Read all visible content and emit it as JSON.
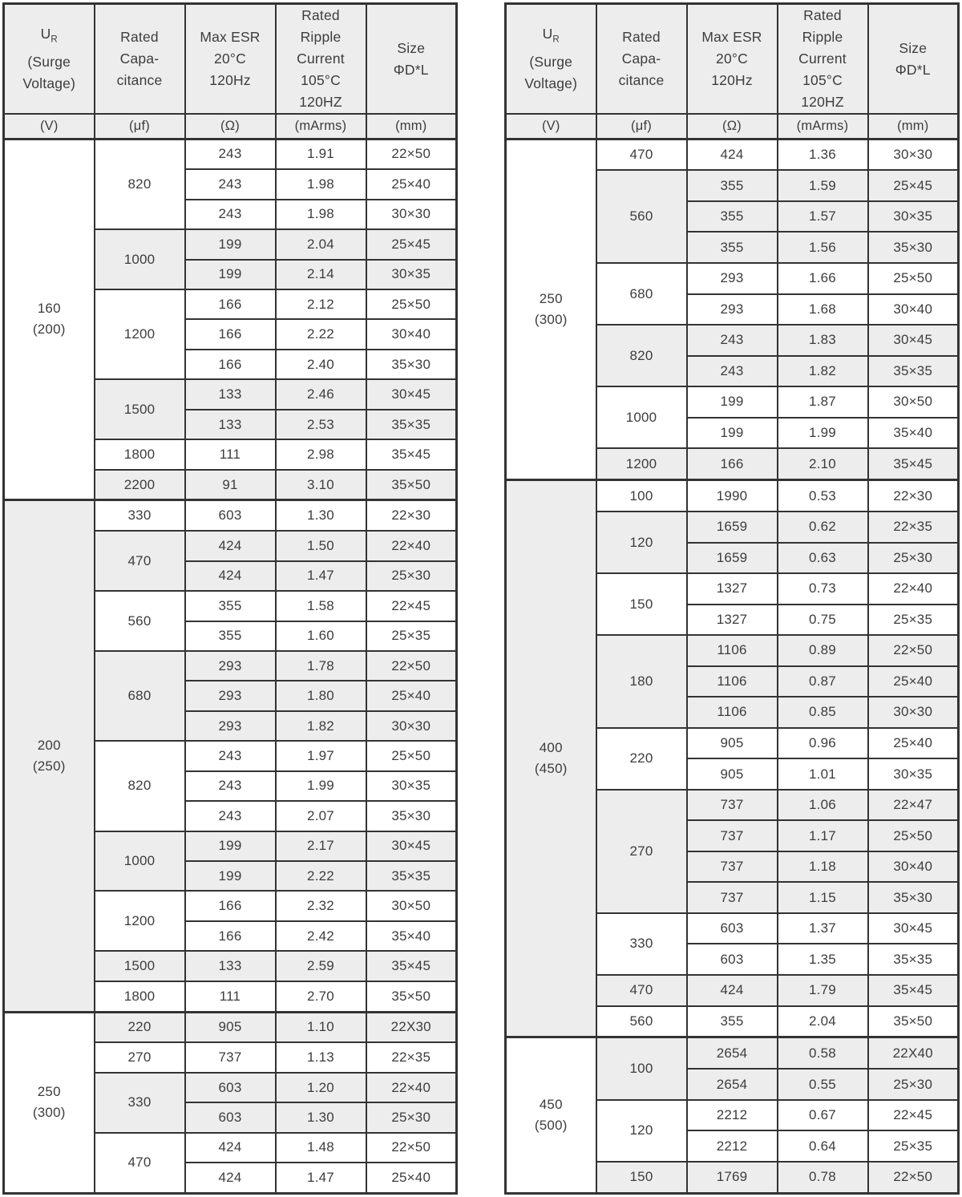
{
  "colors": {
    "border": "#333333",
    "header_bg": "#ededee",
    "shade_bg": "#ededee",
    "row_bg": "#ffffff",
    "text": "#3d3d3d",
    "page_bg": "#ffffff"
  },
  "header": {
    "ur": {
      "symbol": "U",
      "sub": "R",
      "lines": [
        "(Surge",
        "Voltage)"
      ],
      "unit": "(V)"
    },
    "capacitance": {
      "lines": [
        "Rated",
        "Capa-",
        "citance"
      ],
      "unit": "(μf)"
    },
    "esr": {
      "lines": [
        "Max ESR",
        "20°C",
        "120Hz"
      ],
      "unit": "(Ω)"
    },
    "ripple": {
      "lines": [
        "Rated",
        "Ripple",
        "Current",
        "105°C",
        "120HZ"
      ],
      "unit": "(mArms)"
    },
    "size": {
      "lines": [
        "Size",
        "ΦD*L"
      ],
      "unit": "(mm)"
    }
  },
  "tables": [
    {
      "name": "left-table",
      "sections": [
        {
          "voltage": "160",
          "surge": "(200)",
          "groups": [
            {
              "cap": "820",
              "rows": [
                [
                  "243",
                  "1.91",
                  "22×50"
                ],
                [
                  "243",
                  "1.98",
                  "25×40"
                ],
                [
                  "243",
                  "1.98",
                  "30×30"
                ]
              ]
            },
            {
              "cap": "1000",
              "rows": [
                [
                  "199",
                  "2.04",
                  "25×45"
                ],
                [
                  "199",
                  "2.14",
                  "30×35"
                ]
              ]
            },
            {
              "cap": "1200",
              "rows": [
                [
                  "166",
                  "2.12",
                  "25×50"
                ],
                [
                  "166",
                  "2.22",
                  "30×40"
                ],
                [
                  "166",
                  "2.40",
                  "35×30"
                ]
              ]
            },
            {
              "cap": "1500",
              "rows": [
                [
                  "133",
                  "2.46",
                  "30×45"
                ],
                [
                  "133",
                  "2.53",
                  "35×35"
                ]
              ]
            },
            {
              "cap": "1800",
              "rows": [
                [
                  "111",
                  "2.98",
                  "35×45"
                ]
              ]
            },
            {
              "cap": "2200",
              "rows": [
                [
                  "91",
                  "3.10",
                  "35×50"
                ]
              ]
            }
          ]
        },
        {
          "voltage": "200",
          "surge": "(250)",
          "groups": [
            {
              "cap": "330",
              "rows": [
                [
                  "603",
                  "1.30",
                  "22×30"
                ]
              ]
            },
            {
              "cap": "470",
              "rows": [
                [
                  "424",
                  "1.50",
                  "22×40"
                ],
                [
                  "424",
                  "1.47",
                  "25×30"
                ]
              ]
            },
            {
              "cap": "560",
              "rows": [
                [
                  "355",
                  "1.58",
                  "22×45"
                ],
                [
                  "355",
                  "1.60",
                  "25×35"
                ]
              ]
            },
            {
              "cap": "680",
              "rows": [
                [
                  "293",
                  "1.78",
                  "22×50"
                ],
                [
                  "293",
                  "1.80",
                  "25×40"
                ],
                [
                  "293",
                  "1.82",
                  "30×30"
                ]
              ]
            },
            {
              "cap": "820",
              "rows": [
                [
                  "243",
                  "1.97",
                  "25×50"
                ],
                [
                  "243",
                  "1.99",
                  "30×35"
                ],
                [
                  "243",
                  "2.07",
                  "35×30"
                ]
              ]
            },
            {
              "cap": "1000",
              "rows": [
                [
                  "199",
                  "2.17",
                  "30×45"
                ],
                [
                  "199",
                  "2.22",
                  "35×35"
                ]
              ]
            },
            {
              "cap": "1200",
              "rows": [
                [
                  "166",
                  "2.32",
                  "30×50"
                ],
                [
                  "166",
                  "2.42",
                  "35×40"
                ]
              ]
            },
            {
              "cap": "1500",
              "rows": [
                [
                  "133",
                  "2.59",
                  "35×45"
                ]
              ]
            },
            {
              "cap": "1800",
              "rows": [
                [
                  "111",
                  "2.70",
                  "35×50"
                ]
              ]
            }
          ]
        },
        {
          "voltage": "250",
          "surge": "(300)",
          "groups": [
            {
              "cap": "220",
              "rows": [
                [
                  "905",
                  "1.10",
                  "22X30"
                ]
              ]
            },
            {
              "cap": "270",
              "rows": [
                [
                  "737",
                  "1.13",
                  "22×35"
                ]
              ]
            },
            {
              "cap": "330",
              "rows": [
                [
                  "603",
                  "1.20",
                  "22×40"
                ],
                [
                  "603",
                  "1.30",
                  "25×30"
                ]
              ]
            },
            {
              "cap": "470",
              "rows": [
                [
                  "424",
                  "1.48",
                  "22×50"
                ],
                [
                  "424",
                  "1.47",
                  "25×40"
                ]
              ]
            }
          ]
        }
      ]
    },
    {
      "name": "right-table",
      "sections": [
        {
          "voltage": "250",
          "surge": "(300)",
          "groups": [
            {
              "cap": "470",
              "rows": [
                [
                  "424",
                  "1.36",
                  "30×30"
                ]
              ]
            },
            {
              "cap": "560",
              "rows": [
                [
                  "355",
                  "1.59",
                  "25×45"
                ],
                [
                  "355",
                  "1.57",
                  "30×35"
                ],
                [
                  "355",
                  "1.56",
                  "35×30"
                ]
              ]
            },
            {
              "cap": "680",
              "rows": [
                [
                  "293",
                  "1.66",
                  "25×50"
                ],
                [
                  "293",
                  "1.68",
                  "30×40"
                ]
              ]
            },
            {
              "cap": "820",
              "rows": [
                [
                  "243",
                  "1.83",
                  "30×45"
                ],
                [
                  "243",
                  "1.82",
                  "35×35"
                ]
              ]
            },
            {
              "cap": "1000",
              "rows": [
                [
                  "199",
                  "1.87",
                  "30×50"
                ],
                [
                  "199",
                  "1.99",
                  "35×40"
                ]
              ]
            },
            {
              "cap": "1200",
              "rows": [
                [
                  "166",
                  "2.10",
                  "35×45"
                ]
              ]
            }
          ]
        },
        {
          "voltage": "400",
          "surge": "(450)",
          "groups": [
            {
              "cap": "100",
              "rows": [
                [
                  "1990",
                  "0.53",
                  "22×30"
                ]
              ]
            },
            {
              "cap": "120",
              "rows": [
                [
                  "1659",
                  "0.62",
                  "22×35"
                ],
                [
                  "1659",
                  "0.63",
                  "25×30"
                ]
              ]
            },
            {
              "cap": "150",
              "rows": [
                [
                  "1327",
                  "0.73",
                  "22×40"
                ],
                [
                  "1327",
                  "0.75",
                  "25×35"
                ]
              ]
            },
            {
              "cap": "180",
              "rows": [
                [
                  "1106",
                  "0.89",
                  "22×50"
                ],
                [
                  "1106",
                  "0.87",
                  "25×40"
                ],
                [
                  "1106",
                  "0.85",
                  "30×30"
                ]
              ]
            },
            {
              "cap": "220",
              "rows": [
                [
                  "905",
                  "0.96",
                  "25×40"
                ],
                [
                  "905",
                  "1.01",
                  "30×35"
                ]
              ]
            },
            {
              "cap": "270",
              "rows": [
                [
                  "737",
                  "1.06",
                  "22×47"
                ],
                [
                  "737",
                  "1.17",
                  "25×50"
                ],
                [
                  "737",
                  "1.18",
                  "30×40"
                ],
                [
                  "737",
                  "1.15",
                  "35×30"
                ]
              ]
            },
            {
              "cap": "330",
              "rows": [
                [
                  "603",
                  "1.37",
                  "30×45"
                ],
                [
                  "603",
                  "1.35",
                  "35×35"
                ]
              ]
            },
            {
              "cap": "470",
              "rows": [
                [
                  "424",
                  "1.79",
                  "35×45"
                ]
              ]
            },
            {
              "cap": "560",
              "rows": [
                [
                  "355",
                  "2.04",
                  "35×50"
                ]
              ]
            }
          ]
        },
        {
          "voltage": "450",
          "surge": "(500)",
          "groups": [
            {
              "cap": "100",
              "rows": [
                [
                  "2654",
                  "0.58",
                  "22X40"
                ],
                [
                  "2654",
                  "0.55",
                  "25×30"
                ]
              ]
            },
            {
              "cap": "120",
              "rows": [
                [
                  "2212",
                  "0.67",
                  "22×45"
                ],
                [
                  "2212",
                  "0.64",
                  "25×35"
                ]
              ]
            },
            {
              "cap": "150",
              "rows": [
                [
                  "1769",
                  "0.78",
                  "22×50"
                ]
              ]
            }
          ]
        }
      ]
    }
  ]
}
